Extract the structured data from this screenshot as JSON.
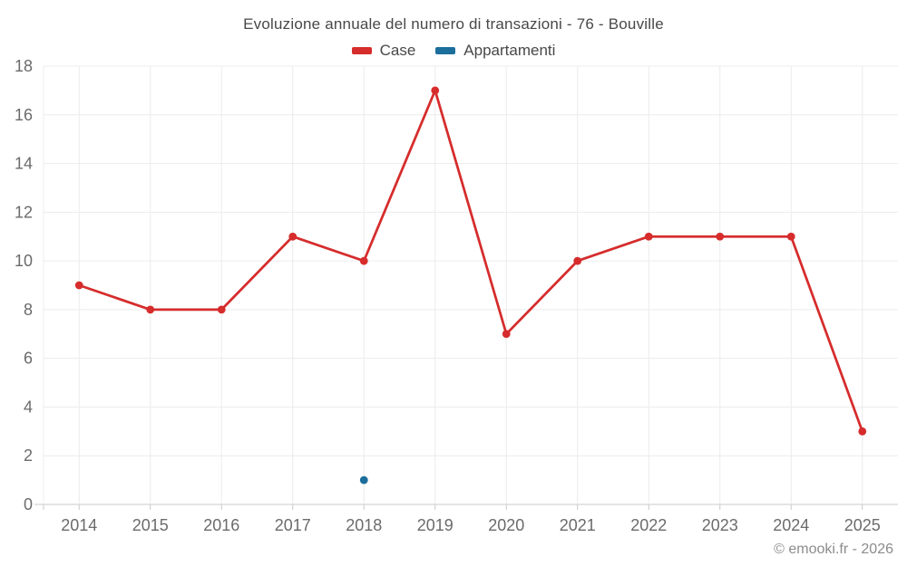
{
  "title": "Evoluzione annuale del numero di transazioni - 76 - Bouville",
  "footer": "© emooki.fr - 2026",
  "legend": {
    "items": [
      {
        "label": "Case",
        "color": "#d62c2c"
      },
      {
        "label": "Appartamenti",
        "color": "#1c6e9c"
      }
    ]
  },
  "colors": {
    "background": "#ffffff",
    "grid": "#ececec",
    "axis_line": "#c9c9c9",
    "tick_label": "#6b6b6b",
    "title_text": "#484848",
    "footer_text": "#8c8c8c",
    "case_red": "#d62c2c",
    "appartamenti_blue": "#1c6e9c"
  },
  "chart_data": {
    "type": "line",
    "title": "Evoluzione annuale del numero di transazioni - 76 - Bouville",
    "categories": [
      "2014",
      "2015",
      "2016",
      "2017",
      "2018",
      "2019",
      "2020",
      "2021",
      "2022",
      "2023",
      "2024",
      "2025"
    ],
    "series": [
      {
        "name": "Case",
        "color": "#d62c2c",
        "values": [
          9,
          8,
          8,
          11,
          10,
          17,
          7,
          10,
          11,
          11,
          11,
          3
        ]
      },
      {
        "name": "Appartamenti",
        "color": "#1c6e9c",
        "values": [
          null,
          null,
          null,
          null,
          1,
          null,
          null,
          null,
          null,
          null,
          null,
          null
        ]
      }
    ],
    "xlabel": "",
    "ylabel": "",
    "ylim": [
      0,
      18
    ],
    "ytick_step": 2,
    "y_tick_labels": [
      "0",
      "2",
      "4",
      "6",
      "8",
      "10",
      "12",
      "14",
      "16",
      "18"
    ],
    "grid": true,
    "legend_position": "top"
  }
}
